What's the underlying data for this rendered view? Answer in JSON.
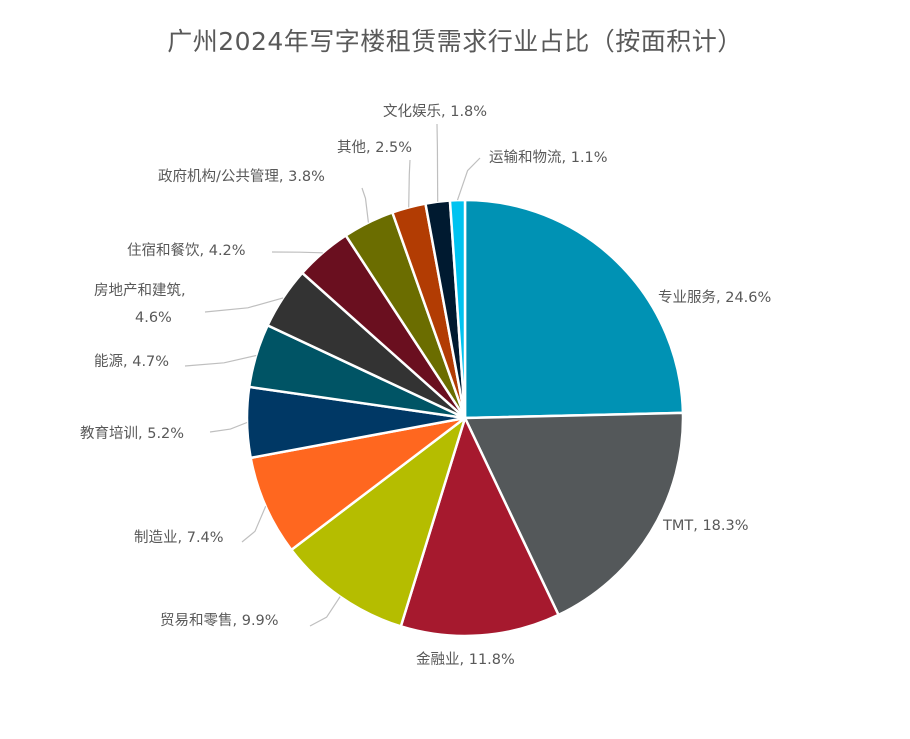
{
  "chart_data": {
    "type": "pie",
    "title": "广州2024年写字楼租赁需求行业占比（按面积计）",
    "slices": [
      {
        "name": "专业服务",
        "value": 24.6,
        "label": "专业服务, 24.6%",
        "color": "#0092B4"
      },
      {
        "name": "TMT",
        "value": 18.3,
        "label": "TMT, 18.3%",
        "color": "#54585A"
      },
      {
        "name": "金融业",
        "value": 11.8,
        "label": "金融业, 11.8%",
        "color": "#A6192E"
      },
      {
        "name": "贸易和零售",
        "value": 9.9,
        "label": "贸易和零售, 9.9%",
        "color": "#B5BD00"
      },
      {
        "name": "制造业",
        "value": 7.4,
        "label": "制造业, 7.4%",
        "color": "#FF671F"
      },
      {
        "name": "教育培训",
        "value": 5.2,
        "label": "教育培训, 5.2%",
        "color": "#003865"
      },
      {
        "name": "能源",
        "value": 4.7,
        "label": "能源, 4.7%",
        "color": "#005465"
      },
      {
        "name": "房地产和建筑",
        "value": 4.6,
        "label": "房地产和建筑,|4.6%",
        "color": "#333333"
      },
      {
        "name": "住宿和餐饮",
        "value": 4.2,
        "label": "住宿和餐饮, 4.2%",
        "color": "#6A0F1F"
      },
      {
        "name": "政府机构/公共管理",
        "value": 3.8,
        "label": "政府机构/公共管理, 3.8%",
        "color": "#6B6D00"
      },
      {
        "name": "其他",
        "value": 2.5,
        "label": "其他, 2.5%",
        "color": "#B23C03"
      },
      {
        "name": "文化娱乐",
        "value": 1.8,
        "label": "文化娱乐, 1.8%",
        "color": "#001A30"
      },
      {
        "name": "运输和物流",
        "value": 1.1,
        "label": "运输和物流, 1.1%",
        "color": "#00C3F0"
      }
    ],
    "legend": "none"
  }
}
